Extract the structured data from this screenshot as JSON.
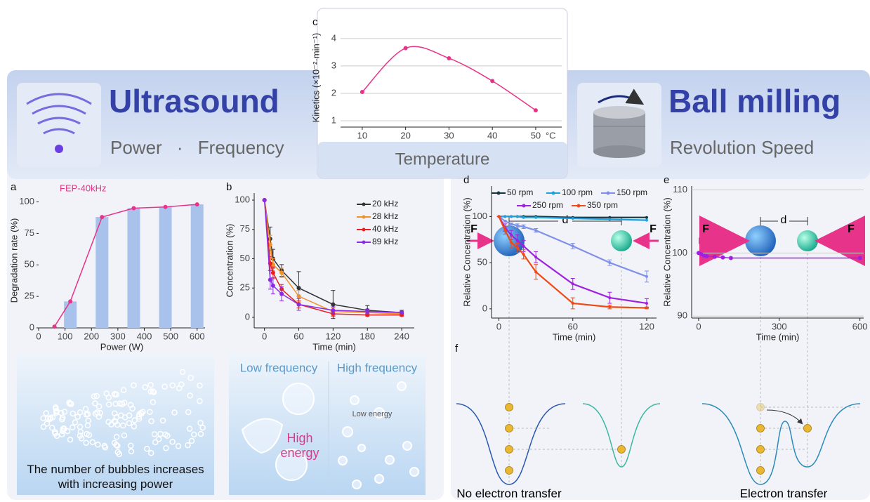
{
  "ultrasound": {
    "title": "Ultrasound",
    "subtitle": "Power · Frequency"
  },
  "ball_milling": {
    "title": "Ball milling",
    "subtitle": "Revolution Speed"
  },
  "temperature_caption": "Temperature",
  "chart_data": [
    {
      "type": "line",
      "panel": "c",
      "ylabel": "Kinetics (×10⁻²·min⁻¹)",
      "x_unit": "°C",
      "smooth": true,
      "grid": true,
      "x": [
        10,
        20,
        30,
        40,
        50
      ],
      "xlim": [
        5,
        56
      ],
      "xticks": [
        10,
        20,
        30,
        40,
        50
      ],
      "ylim": [
        0.77,
        4.38
      ],
      "yticks": [
        1,
        2,
        3,
        4
      ],
      "series": [
        {
          "color": "#e8338a",
          "values": [
            2.05,
            3.65,
            3.28,
            2.45,
            1.38
          ]
        }
      ]
    },
    {
      "type": "bar-line",
      "panel": "a",
      "xlabel": "Power (W)",
      "ylabel": "Degradation rate (%)",
      "xlim": [
        0,
        630
      ],
      "xticks": [
        0,
        100,
        200,
        300,
        400,
        500,
        600
      ],
      "ylim": [
        0,
        107
      ],
      "yticks": [
        0,
        25,
        50,
        75,
        100
      ],
      "bar_x": [
        120,
        240,
        360,
        480,
        600
      ],
      "bar_values": [
        21,
        88,
        95,
        96,
        98
      ],
      "bar_color": "#a8c2ec",
      "x": [
        60,
        120,
        240,
        360,
        480,
        600
      ],
      "series": [
        {
          "name": "FEP-40kHz",
          "color": "#e8338a",
          "values": [
            1,
            21,
            88,
            95,
            96,
            98
          ]
        }
      ]
    },
    {
      "type": "line",
      "panel": "b",
      "xlabel": "Time (min)",
      "ylabel": "Concentration (%)",
      "legend": "upper right",
      "x": [
        0,
        10,
        15,
        30,
        60,
        120,
        180,
        240
      ],
      "xlim": [
        -18,
        262
      ],
      "xticks": [
        0,
        60,
        120,
        180,
        240
      ],
      "ylim": [
        -9,
        106
      ],
      "yticks": [
        0,
        25,
        50,
        75,
        100
      ],
      "series": [
        {
          "name": "20 kHz",
          "color": "#333333",
          "values": [
            100,
            67,
            50,
            40,
            25,
            11,
            6,
            4
          ],
          "errors": [
            0,
            10,
            8,
            5,
            14,
            12,
            4,
            2
          ]
        },
        {
          "name": "28 kHz",
          "color": "#f0922c",
          "values": [
            100,
            62,
            45,
            38,
            18,
            5,
            4,
            3
          ],
          "errors": [
            0,
            8,
            5,
            4,
            5,
            3,
            2,
            1
          ]
        },
        {
          "name": "40 kHz",
          "color": "#e82020",
          "values": [
            100,
            46,
            38,
            24,
            11,
            3,
            2,
            2
          ],
          "errors": [
            0,
            6,
            5,
            4,
            3,
            2,
            1,
            1
          ]
        },
        {
          "name": "89 kHz",
          "color": "#8a2be2",
          "values": [
            100,
            32,
            27,
            20,
            11,
            6,
            5,
            4
          ],
          "errors": [
            0,
            8,
            7,
            6,
            5,
            3,
            2,
            1
          ]
        }
      ]
    },
    {
      "type": "line",
      "panel": "d",
      "xlabel": "Time (min)",
      "ylabel": "Relative Concentration (%)",
      "legend": "top",
      "x": [
        0,
        5,
        10,
        15,
        20,
        30,
        60,
        90,
        120
      ],
      "xlim": [
        -6,
        128
      ],
      "xticks": [
        0,
        60,
        120
      ],
      "ylim": [
        -10,
        133
      ],
      "yticks": [
        0,
        50,
        100
      ],
      "series": [
        {
          "name": "50 rpm",
          "color": "#16343f",
          "values": [
            100,
            100,
            100,
            100,
            100,
            100,
            99,
            99,
            99
          ]
        },
        {
          "name": "100 rpm",
          "color": "#1ea0dc",
          "values": [
            100,
            100,
            100,
            100,
            99,
            99,
            98,
            97,
            96
          ]
        },
        {
          "name": "150 rpm",
          "color": "#8090e8",
          "values": [
            100,
            95,
            92,
            90,
            89,
            85,
            68,
            50,
            35
          ],
          "errors": [
            0,
            1,
            1,
            2,
            2,
            2,
            3,
            3,
            6
          ]
        },
        {
          "name": "250 rpm",
          "color": "#a020e0",
          "values": [
            100,
            88,
            80,
            74,
            68,
            56,
            27,
            12,
            6
          ],
          "errors": [
            0,
            4,
            5,
            6,
            6,
            6,
            6,
            6,
            5
          ]
        },
        {
          "name": "350 rpm",
          "color": "#f04a14",
          "values": [
            100,
            85,
            72,
            66,
            59,
            40,
            6,
            2,
            1
          ],
          "errors": [
            0,
            4,
            6,
            5,
            5,
            8,
            6,
            2,
            1
          ]
        }
      ]
    },
    {
      "type": "line",
      "panel": "e",
      "xlabel": "Time (min)",
      "ylabel": "Relative Concentration (%)",
      "grid": true,
      "x": [
        0,
        10,
        20,
        30,
        60,
        90,
        120,
        600
      ],
      "xlim": [
        -26,
        614
      ],
      "xticks": [
        0,
        300,
        600
      ],
      "ylim": [
        89.7,
        110.6
      ],
      "yticks": [
        90,
        100,
        110
      ],
      "series": [
        {
          "color": "#a020e0",
          "values": [
            100,
            99.8,
            99.6,
            99.5,
            99.4,
            99.3,
            99.2,
            99.2
          ]
        }
      ]
    }
  ],
  "illustrations": {
    "bubbles_caption": "The number of bubbles increases with increasing power",
    "low_frequency": "Low frequency",
    "high_frequency": "High frequency",
    "high_energy": "High energy",
    "low_energy": "Low energy",
    "panel_f": "f",
    "force_labels": [
      "F",
      "F",
      "F",
      "F"
    ],
    "distance_labels": [
      "d",
      "d"
    ],
    "no_transfer": "No electron transfer",
    "transfer": "Electron transfer"
  }
}
